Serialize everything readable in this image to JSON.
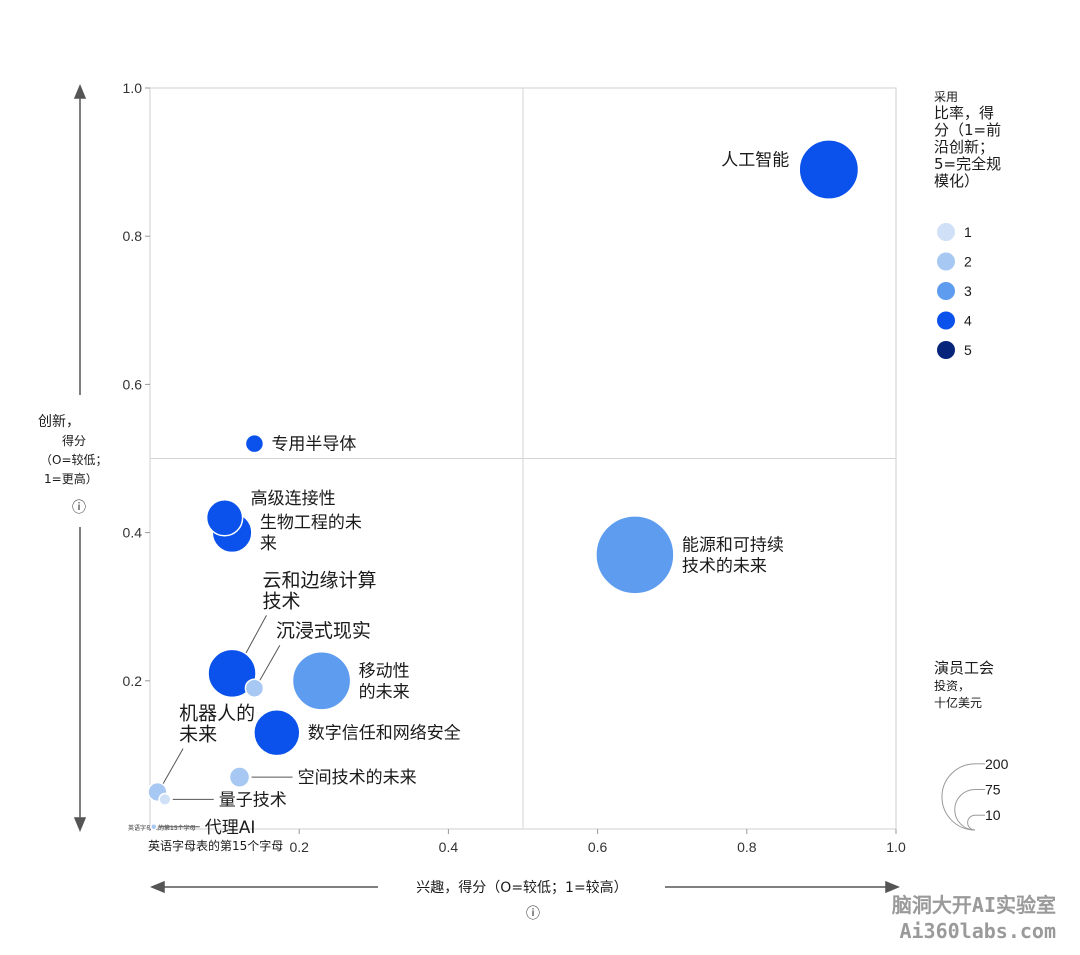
{
  "chart_data": {
    "type": "scatter",
    "xlim": [
      0,
      1
    ],
    "ylim": [
      0,
      1
    ],
    "x_ticks": [
      "0.2",
      "0.4",
      "0.6",
      "0.8",
      "1.0"
    ],
    "y_ticks": [
      "0.2",
      "0.4",
      "0.6",
      "0.8",
      "1.0"
    ],
    "x_tick_values": [
      0.2,
      0.4,
      0.6,
      0.8,
      1.0
    ],
    "y_tick_values": [
      0.2,
      0.4,
      0.6,
      0.8,
      1.0
    ],
    "x_first_tick_note": "英语字母表的第15个字母",
    "origin_note": "英语字母表的第15个字母",
    "xlabel": "兴趣，得分（O=较低；1=较高）",
    "ylabel_lines": [
      "创新，",
      "得分",
      "（O=较低；",
      "1=更高）"
    ],
    "quadrant_lines": {
      "x": 0.5,
      "y": 0.5
    },
    "grid": false,
    "color_legend": {
      "title_lines": [
        "采用",
        "比率，得",
        "分（1=前",
        "沿创新；",
        "5=完全规",
        "模化）"
      ],
      "items": [
        {
          "label": "1",
          "color": "#cfe0f7"
        },
        {
          "label": "2",
          "color": "#a6c8f2"
        },
        {
          "label": "3",
          "color": "#5e9cf0"
        },
        {
          "label": "4",
          "color": "#0a52eb"
        },
        {
          "label": "5",
          "color": "#06247a"
        }
      ]
    },
    "size_legend": {
      "title_lines": [
        "演员工会",
        "投资，",
        "十亿美元"
      ],
      "items": [
        {
          "label": "200",
          "value": 200
        },
        {
          "label": "75",
          "value": 75
        },
        {
          "label": "10",
          "value": 10
        }
      ]
    },
    "points": [
      {
        "name_lines": [
          "人工智能"
        ],
        "x": 0.91,
        "y": 0.89,
        "adoption": 4,
        "investment": 130,
        "label_pos": "left"
      },
      {
        "name_lines": [
          "专用半导体"
        ],
        "x": 0.14,
        "y": 0.52,
        "adoption": 4,
        "investment": 12,
        "label_pos": "right"
      },
      {
        "name_lines": [
          "高级连接性"
        ],
        "x": 0.1,
        "y": 0.42,
        "adoption": 4,
        "investment": 48,
        "label_pos": "right-up"
      },
      {
        "name_lines": [
          "生物工程的未",
          "来"
        ],
        "x": 0.11,
        "y": 0.4,
        "adoption": 4,
        "investment": 58,
        "label_pos": "right"
      },
      {
        "name_lines": [
          "能源和可持续",
          "技术的未来"
        ],
        "x": 0.65,
        "y": 0.37,
        "adoption": 3,
        "investment": 225,
        "label_pos": "right"
      },
      {
        "name_lines": [
          "云和边缘计算",
          "技术"
        ],
        "x": 0.11,
        "y": 0.21,
        "adoption": 4,
        "investment": 85,
        "label_pos": "leader-up"
      },
      {
        "name_lines": [
          "沉浸式现实"
        ],
        "x": 0.14,
        "y": 0.19,
        "adoption": 2,
        "investment": 12,
        "label_pos": "leader-up"
      },
      {
        "name_lines": [
          "移动性",
          "的未来"
        ],
        "x": 0.23,
        "y": 0.2,
        "adoption": 3,
        "investment": 125,
        "label_pos": "right"
      },
      {
        "name_lines": [
          "数字信任和网络安全"
        ],
        "x": 0.17,
        "y": 0.13,
        "adoption": 4,
        "investment": 78,
        "label_pos": "right"
      },
      {
        "name_lines": [
          "空间技术的未来"
        ],
        "x": 0.12,
        "y": 0.07,
        "adoption": 2,
        "investment": 15,
        "label_pos": "leader-right"
      },
      {
        "name_lines": [
          "机器人的",
          "未来"
        ],
        "x": 0.01,
        "y": 0.05,
        "adoption": 2,
        "investment": 13,
        "label_pos": "leader-up"
      },
      {
        "name_lines": [
          "量子技术"
        ],
        "x": 0.02,
        "y": 0.04,
        "adoption": 1,
        "investment": 5,
        "label_pos": "leader-right"
      },
      {
        "name_lines": [
          "代理AI"
        ],
        "x": 0.005,
        "y": 0.003,
        "adoption": 2,
        "investment": 1,
        "label_pos": "leader-right"
      }
    ]
  },
  "watermark": {
    "line1": "脑洞大开AI实验室",
    "line2": "Ai360labs.com"
  },
  "info_icon_glyph": "ⓘ"
}
